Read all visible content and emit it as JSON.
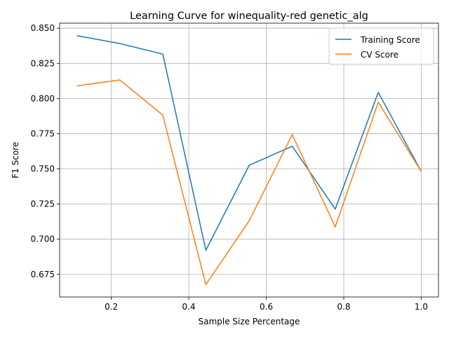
{
  "chart_data": {
    "type": "line",
    "title": "Learning Curve for winequality-red genetic_alg",
    "xlabel": "Sample Size Percentage",
    "ylabel": "F1 Score",
    "x": [
      0.111,
      0.222,
      0.333,
      0.444,
      0.556,
      0.667,
      0.778,
      0.889,
      1.0
    ],
    "series": [
      {
        "name": "Training Score",
        "color": "#1f77b4",
        "values": [
          0.8447,
          0.8391,
          0.8316,
          0.6921,
          0.7526,
          0.7661,
          0.7214,
          0.8044,
          0.7481
        ]
      },
      {
        "name": "CV Score",
        "color": "#ff7f0e",
        "values": [
          0.809,
          0.8132,
          0.7882,
          0.6677,
          0.7131,
          0.7743,
          0.7088,
          0.7974,
          0.7481
        ]
      }
    ],
    "xlim": [
      0.0667,
      1.0444
    ],
    "ylim": [
      0.6589,
      0.8536
    ],
    "xticks": [
      0.2,
      0.4,
      0.6,
      0.8,
      1.0
    ],
    "xtick_labels": [
      "0.2",
      "0.4",
      "0.6",
      "0.8",
      "1.0"
    ],
    "yticks": [
      0.675,
      0.7,
      0.725,
      0.75,
      0.775,
      0.8,
      0.825,
      0.85
    ],
    "ytick_labels": [
      "0.675",
      "0.700",
      "0.725",
      "0.750",
      "0.775",
      "0.800",
      "0.825",
      "0.850"
    ],
    "grid": true,
    "legend_position": "top-right"
  }
}
